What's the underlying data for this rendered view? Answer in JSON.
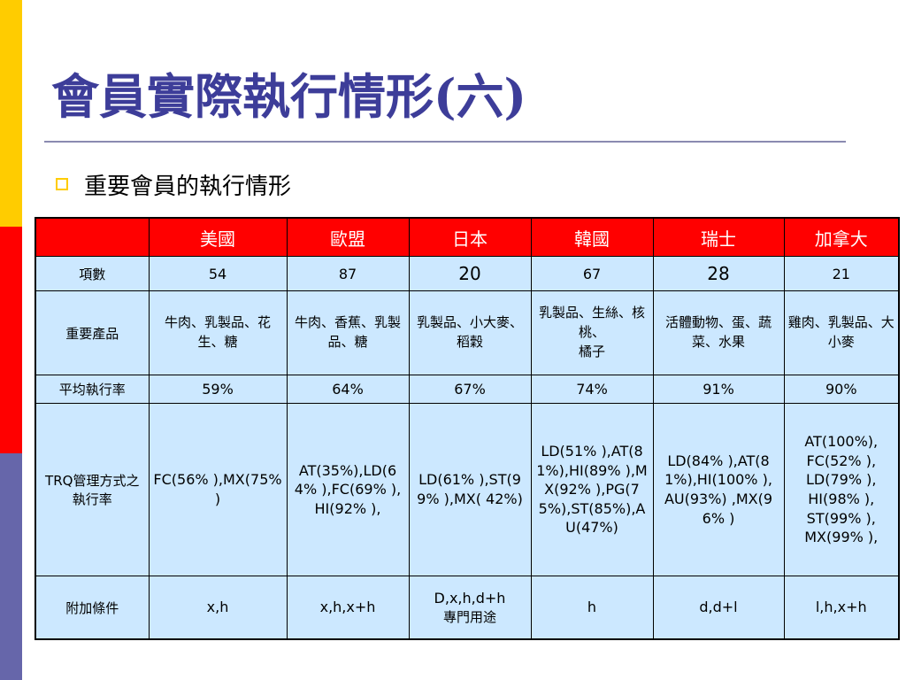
{
  "slide": {
    "title": "會員實際執行情形(六)",
    "bullet": "重要會員的執行情形",
    "colors": {
      "title": "#3d3d99",
      "header": "#ff0000",
      "cell": "#cce8ff",
      "bullet": "#ffcc00"
    }
  },
  "table": {
    "header": [
      "",
      "美國",
      "歐盟",
      "日本",
      "韓國",
      "瑞士",
      "加拿大"
    ],
    "rows": {
      "items": {
        "label": "項數",
        "values": [
          "54",
          "87",
          "20",
          "67",
          "28",
          "21"
        ]
      },
      "products": {
        "label": "重要產品",
        "values": [
          [
            "牛肉、乳製品、花生、糖"
          ],
          [
            "牛肉、香蕉、乳製品、糖"
          ],
          [
            "乳製品、小大麥、稻穀"
          ],
          [
            "乳製品、生絲、核桃、",
            "橘子"
          ],
          [
            "活體動物、蛋、蔬菜、水果"
          ],
          [
            "雞肉、乳製品、大小麥"
          ]
        ]
      },
      "rate": {
        "label": "平均執行率",
        "values": [
          "59%",
          "64%",
          "67%",
          "74%",
          "91%",
          "90%"
        ]
      },
      "trq": {
        "label": "TRQ管理方式之執行率",
        "values": [
          [
            "FC(56% ),MX(75% )"
          ],
          [
            "AT(35%),LD(64% ),FC(69% ),HI(92% ),"
          ],
          [
            "LD(61% ),ST(99% ),MX( 42%)"
          ],
          [
            "LD(51% ),AT(81%),HI(89% ),MX(92% ),PG(75%),ST(85%),AU(47%)"
          ],
          [
            "LD(84% ),AT(81%),HI(100% ),",
            "AU(93%) ,MX(96% )"
          ],
          [
            "AT(100%),",
            "FC(52% ),",
            "LD(79% ),",
            "HI(98% ),",
            "ST(99% ),",
            "MX(99% ),"
          ]
        ]
      },
      "conditions": {
        "label": "附加條件",
        "values": [
          [
            "x,h"
          ],
          [
            "x,h,x+h"
          ],
          [
            "D,x,h,d+h",
            "專門用途"
          ],
          [
            "h"
          ],
          [
            "d,d+l"
          ],
          [
            "l,h,x+h"
          ]
        ]
      }
    }
  }
}
